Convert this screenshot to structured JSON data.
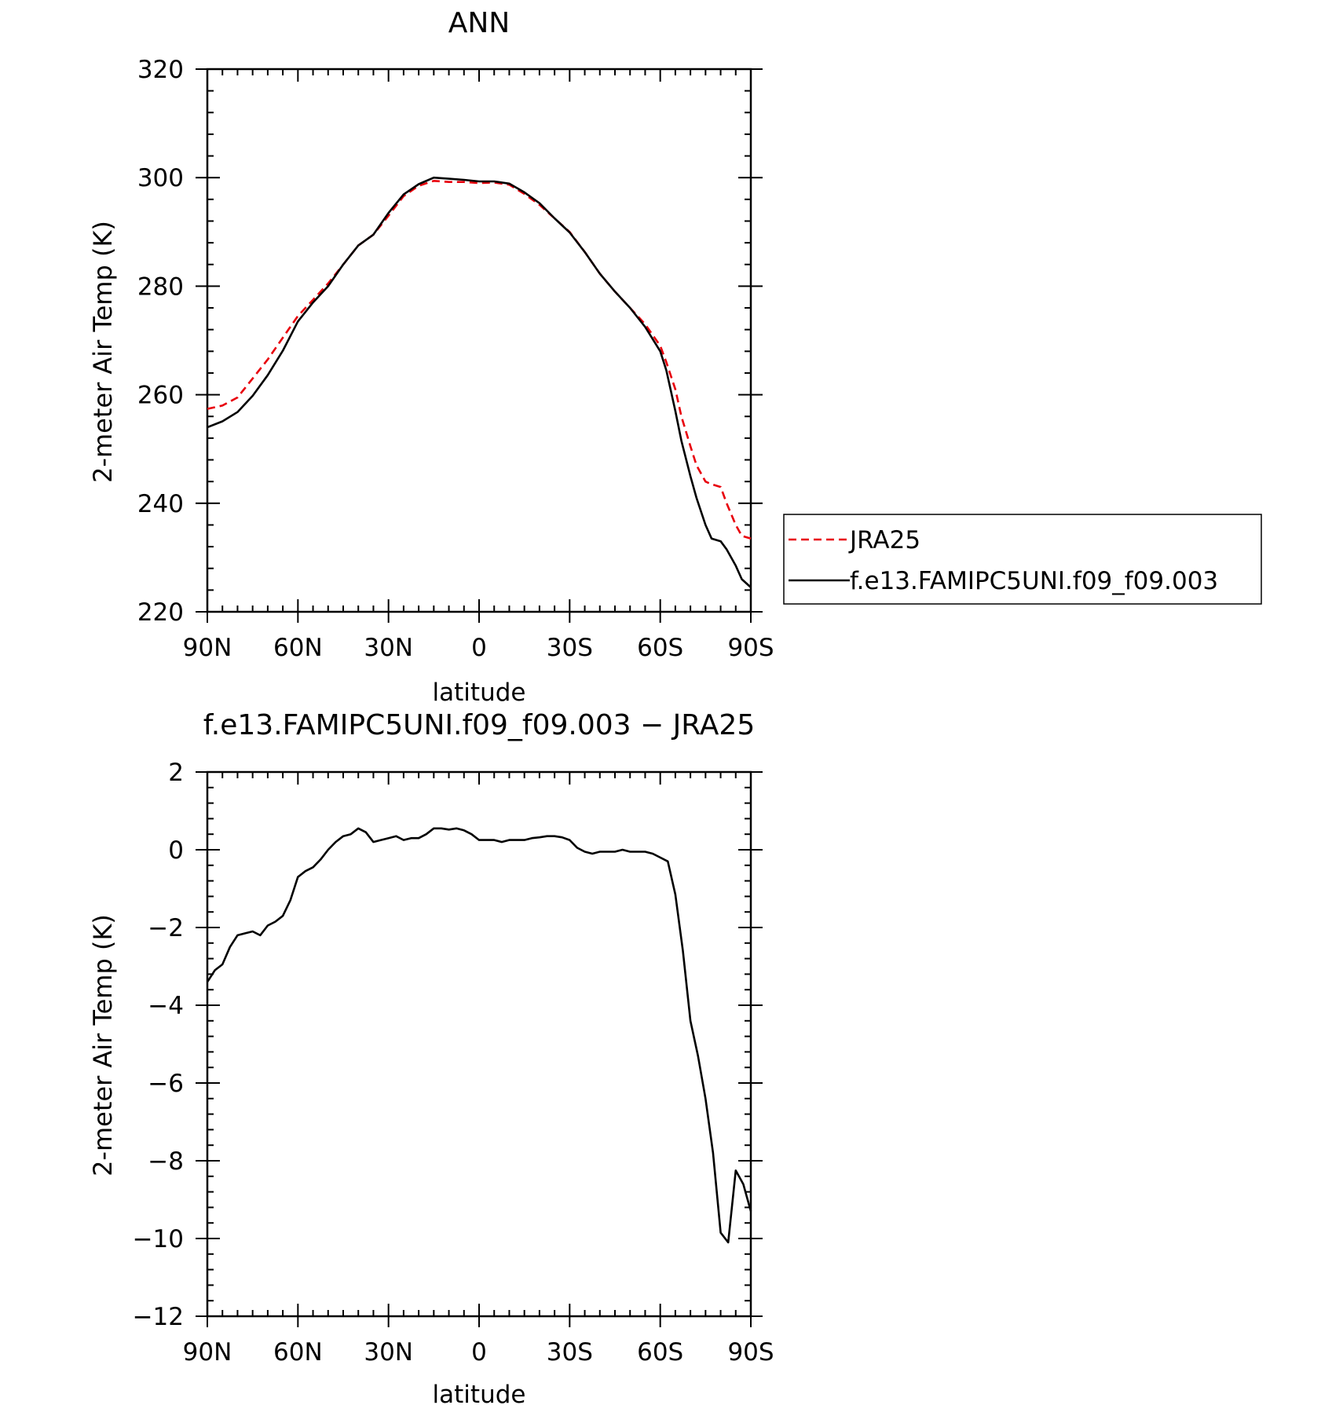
{
  "chart_data": [
    {
      "type": "line",
      "title": "ANN",
      "xlabel": "latitude",
      "ylabel": "2-meter Air Temp (K)",
      "xlim": [
        90,
        -90
      ],
      "ylim": [
        220,
        320
      ],
      "xticks": [
        {
          "value": 90,
          "label": "90N"
        },
        {
          "value": 60,
          "label": "60N"
        },
        {
          "value": 30,
          "label": "30N"
        },
        {
          "value": 0,
          "label": "0"
        },
        {
          "value": -30,
          "label": "30S"
        },
        {
          "value": -60,
          "label": "60S"
        },
        {
          "value": -90,
          "label": "90S"
        }
      ],
      "yticks": [
        220,
        240,
        260,
        280,
        300,
        320
      ],
      "legend_position": "right, outside",
      "grid": false,
      "series": [
        {
          "name": "JRA25",
          "color": "#e8000b",
          "dash": "dashed",
          "x": [
            90,
            85,
            80,
            75,
            70,
            65,
            60,
            55,
            50,
            45,
            40,
            35,
            30,
            25,
            20,
            15,
            10,
            5,
            0,
            -5,
            -10,
            -15,
            -20,
            -25,
            -30,
            -35,
            -40,
            -45,
            -50,
            -55,
            -60,
            -62,
            -65,
            -67,
            -70,
            -72,
            -75,
            -77,
            -80,
            -82,
            -85,
            -87,
            -90
          ],
          "values": [
            257.4,
            258.0,
            259.5,
            263.0,
            266.5,
            270.5,
            274.5,
            277.5,
            280.5,
            284.0,
            287.5,
            289.5,
            293.0,
            296.6,
            298.5,
            299.4,
            299.2,
            299.2,
            299.0,
            299.1,
            298.7,
            297.0,
            295.0,
            292.5,
            290.0,
            286.3,
            282.3,
            279.0,
            276.0,
            273.0,
            269.0,
            266.0,
            261.0,
            256.0,
            250.5,
            247.0,
            244.0,
            243.5,
            243.0,
            240.0,
            236.0,
            234.0,
            233.5
          ]
        },
        {
          "name": "f.e13.FAMIPC5UNI.f09_f09.003",
          "color": "#000000",
          "dash": "solid",
          "x": [
            90,
            85,
            80,
            75,
            70,
            65,
            60,
            55,
            50,
            45,
            40,
            35,
            30,
            25,
            20,
            15,
            10,
            5,
            0,
            -5,
            -10,
            -15,
            -20,
            -25,
            -30,
            -35,
            -40,
            -45,
            -50,
            -55,
            -60,
            -62,
            -65,
            -67,
            -70,
            -72,
            -75,
            -77,
            -80,
            -82,
            -85,
            -87,
            -90
          ],
          "values": [
            254.0,
            255.1,
            256.8,
            259.8,
            263.6,
            268.1,
            273.5,
            277.0,
            280.0,
            284.0,
            287.5,
            289.5,
            293.5,
            296.9,
            298.8,
            300.0,
            299.8,
            299.6,
            299.3,
            299.3,
            298.9,
            297.3,
            295.3,
            292.5,
            289.9,
            286.3,
            282.3,
            279.0,
            276.0,
            272.5,
            268.0,
            264.5,
            257.0,
            251.5,
            245.0,
            241.0,
            236.0,
            233.5,
            233.0,
            231.5,
            228.5,
            226.0,
            224.5
          ]
        }
      ]
    },
    {
      "type": "line",
      "title": "f.e13.FAMIPC5UNI.f09_f09.003 − JRA25",
      "xlabel": "latitude",
      "ylabel": "2-meter Air Temp (K)",
      "xlim": [
        90,
        -90
      ],
      "ylim": [
        -12,
        2
      ],
      "xticks": [
        {
          "value": 90,
          "label": "90N"
        },
        {
          "value": 60,
          "label": "60N"
        },
        {
          "value": 30,
          "label": "30N"
        },
        {
          "value": 0,
          "label": "0"
        },
        {
          "value": -30,
          "label": "30S"
        },
        {
          "value": -60,
          "label": "60S"
        },
        {
          "value": -90,
          "label": "90S"
        }
      ],
      "yticks": [
        {
          "value": 2,
          "label": "2"
        },
        {
          "value": 0,
          "label": "0"
        },
        {
          "value": -2,
          "label": "−2"
        },
        {
          "value": -4,
          "label": "−4"
        },
        {
          "value": -6,
          "label": "−6"
        },
        {
          "value": -8,
          "label": "−8"
        },
        {
          "value": -10,
          "label": "−10"
        },
        {
          "value": -12,
          "label": "−12"
        }
      ],
      "grid": false,
      "series": [
        {
          "color": "#000000",
          "dash": "solid",
          "x": [
            90,
            87.5,
            85,
            82.5,
            80,
            77.5,
            75,
            72.5,
            70,
            67.5,
            65,
            62.5,
            60,
            57.5,
            55,
            52.5,
            50,
            47.5,
            45,
            42.5,
            40,
            37.5,
            35,
            32.5,
            30,
            27.5,
            25,
            22.5,
            20,
            17.5,
            15,
            12.5,
            10,
            7.5,
            5,
            2.5,
            0,
            -2.5,
            -5,
            -7.5,
            -10,
            -12.5,
            -15,
            -17.5,
            -20,
            -22.5,
            -25,
            -27.5,
            -30,
            -32.5,
            -35,
            -37.5,
            -40,
            -42.5,
            -45,
            -47.5,
            -50,
            -52.5,
            -55,
            -57.5,
            -60,
            -62.5,
            -65,
            -67.5,
            -70,
            -72.5,
            -75,
            -77.5,
            -80,
            -82.5,
            -85,
            -87.5,
            -90
          ],
          "values": [
            -3.4,
            -3.1,
            -2.95,
            -2.5,
            -2.2,
            -2.15,
            -2.1,
            -2.2,
            -1.95,
            -1.85,
            -1.7,
            -1.3,
            -0.7,
            -0.55,
            -0.45,
            -0.25,
            0.0,
            0.2,
            0.35,
            0.4,
            0.55,
            0.45,
            0.2,
            0.25,
            0.3,
            0.35,
            0.25,
            0.3,
            0.3,
            0.4,
            0.55,
            0.55,
            0.52,
            0.55,
            0.5,
            0.4,
            0.25,
            0.25,
            0.25,
            0.2,
            0.25,
            0.25,
            0.25,
            0.3,
            0.32,
            0.35,
            0.35,
            0.32,
            0.25,
            0.05,
            -0.05,
            -0.1,
            -0.05,
            -0.05,
            -0.05,
            0.0,
            -0.05,
            -0.05,
            -0.05,
            -0.1,
            -0.2,
            -0.3,
            -1.15,
            -2.6,
            -4.4,
            -5.3,
            -6.4,
            -7.8,
            -9.85,
            -10.1,
            -8.25,
            -8.6,
            -9.3
          ]
        }
      ]
    }
  ]
}
